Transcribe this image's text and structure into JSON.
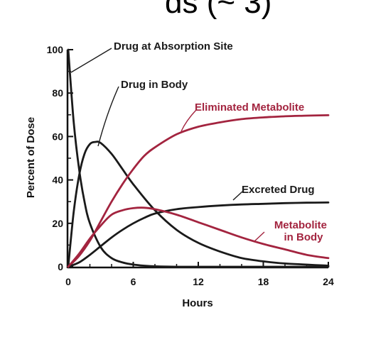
{
  "page": {
    "clipped_heading": "ds (~ 3)"
  },
  "chart_data": {
    "type": "line",
    "title": "",
    "xlabel": "Hours",
    "ylabel": "Percent of Dose",
    "xlim": [
      0,
      24
    ],
    "ylim": [
      0,
      100
    ],
    "x_ticks": [
      0,
      6,
      12,
      18,
      24
    ],
    "y_ticks": [
      0,
      20,
      40,
      60,
      80,
      100
    ],
    "grid": false,
    "legend": "none",
    "colors": {
      "black_series": "#1a1a1a",
      "red_series": "#a3243f"
    },
    "series": [
      {
        "name": "Drug at Absorption Site",
        "color": "#1a1a1a",
        "x": [
          0,
          0.5,
          1,
          1.5,
          2,
          3,
          4,
          5,
          6,
          7,
          8,
          10,
          12,
          24
        ],
        "y": [
          100,
          67,
          45,
          30,
          20,
          9,
          4,
          2,
          1,
          0.5,
          0.2,
          0,
          0,
          0
        ]
      },
      {
        "name": "Drug in Body",
        "color": "#1a1a1a",
        "x": [
          0,
          0.5,
          1,
          1.5,
          2,
          2.5,
          3,
          4,
          5,
          6,
          8,
          10,
          12,
          14,
          16,
          18,
          20,
          24
        ],
        "y": [
          0,
          25,
          42,
          52,
          56.5,
          57.5,
          57,
          52,
          45,
          38,
          26,
          17,
          11,
          7,
          4,
          2.5,
          1.5,
          0.5
        ]
      },
      {
        "name": "Eliminated Metabolite",
        "color": "#a3243f",
        "x": [
          0,
          1,
          2,
          3,
          4,
          5,
          6,
          7,
          8,
          10,
          12,
          14,
          16,
          18,
          20,
          22,
          24
        ],
        "y": [
          0,
          5,
          12,
          21,
          30,
          38,
          45,
          51,
          55,
          61,
          64.5,
          66.5,
          68,
          68.8,
          69.3,
          69.6,
          69.8
        ]
      },
      {
        "name": "Excreted Drug",
        "color": "#1a1a1a",
        "x": [
          0,
          1,
          2,
          3,
          4,
          5,
          6,
          7,
          8,
          10,
          12,
          14,
          16,
          18,
          20,
          22,
          24
        ],
        "y": [
          0,
          2,
          5.5,
          9.5,
          13.5,
          17,
          20,
          22.5,
          24.5,
          26.5,
          27.5,
          28.2,
          28.7,
          29,
          29.3,
          29.5,
          29.6
        ]
      },
      {
        "name": "Metabolite in Body",
        "color": "#a3243f",
        "x": [
          0,
          1,
          2,
          3,
          4,
          5,
          6,
          7,
          8,
          10,
          12,
          14,
          16,
          18,
          20,
          22,
          24
        ],
        "y": [
          0,
          6,
          13,
          19,
          24,
          26,
          27,
          27.2,
          26.5,
          24,
          20.5,
          17,
          13.5,
          10.5,
          8,
          5.5,
          4
        ]
      }
    ],
    "annotations": [
      {
        "text": "Drug at Absorption Site",
        "color": "#1a1a1a",
        "points_to": {
          "x": 0.3,
          "y": 82
        }
      },
      {
        "text": "Drug in Body",
        "color": "#1a1a1a",
        "points_to": {
          "x": 2.8,
          "y": 57
        }
      },
      {
        "text": "Eliminated Metabolite",
        "color": "#a3243f",
        "points_to": {
          "x": 10.2,
          "y": 61.5
        }
      },
      {
        "text": "Excreted Drug",
        "color": "#1a1a1a",
        "points_to": {
          "x": 15.5,
          "y": 28.5
        }
      },
      {
        "text": "Metabolite\nin Body",
        "color": "#a3243f",
        "points_to": {
          "x": 16.5,
          "y": 12.5
        }
      }
    ]
  }
}
